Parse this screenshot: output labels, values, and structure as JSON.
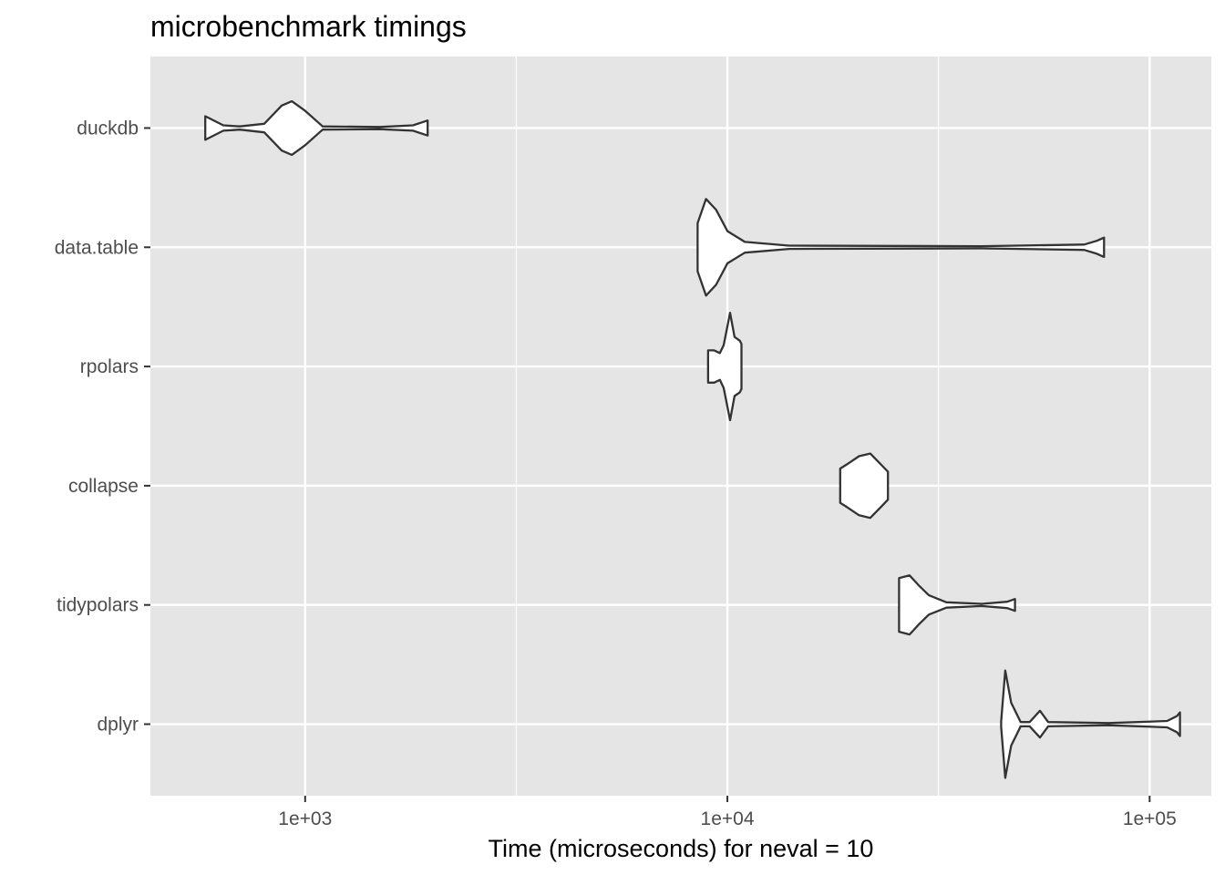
{
  "chart_data": {
    "type": "violin",
    "title": "microbenchmark timings",
    "xlabel": "Time (microseconds) for neval = 10",
    "ylabel": "",
    "x_scale": "log10",
    "xlim": [
      430,
      140000
    ],
    "x_ticks": [
      {
        "value": 1000,
        "label": "1e+03"
      },
      {
        "value": 10000,
        "label": "1e+04"
      },
      {
        "value": 100000,
        "label": "1e+05"
      }
    ],
    "x_minor_gridlines": [
      3162,
      31623
    ],
    "grid": true,
    "legend": "none",
    "colors": {
      "panel_background": "#e5e5e5",
      "gridline": "#ffffff",
      "violin_fill": "#ffffff",
      "violin_outline": "#333333",
      "tick_label": "#4d4d4d"
    },
    "categories": [
      "duckdb",
      "data.table",
      "rpolars",
      "collapse",
      "tidypolars",
      "dplyr"
    ],
    "series": [
      {
        "name": "duckdb",
        "min": 580,
        "max": 1950,
        "profile": [
          [
            580,
            0.22
          ],
          [
            640,
            0.05
          ],
          [
            700,
            0.03
          ],
          [
            800,
            0.08
          ],
          [
            880,
            0.42
          ],
          [
            930,
            0.5
          ],
          [
            1000,
            0.32
          ],
          [
            1100,
            0.03
          ],
          [
            1500,
            0.02
          ],
          [
            1800,
            0.05
          ],
          [
            1950,
            0.14
          ]
        ]
      },
      {
        "name": "data.table",
        "min": 8500,
        "max": 78000,
        "profile": [
          [
            8500,
            0.45
          ],
          [
            8900,
            0.9
          ],
          [
            9400,
            0.7
          ],
          [
            10000,
            0.3
          ],
          [
            11000,
            0.1
          ],
          [
            14000,
            0.03
          ],
          [
            40000,
            0.02
          ],
          [
            70000,
            0.05
          ],
          [
            75000,
            0.12
          ],
          [
            78000,
            0.18
          ]
        ]
      },
      {
        "name": "rpolars",
        "min": 9000,
        "max": 10800,
        "profile": [
          [
            9000,
            0.3
          ],
          [
            9300,
            0.3
          ],
          [
            9600,
            0.25
          ],
          [
            9800,
            0.4
          ],
          [
            10150,
            1.0
          ],
          [
            10400,
            0.55
          ],
          [
            10700,
            0.48
          ],
          [
            10800,
            0.42
          ]
        ]
      },
      {
        "name": "collapse",
        "min": 18500,
        "max": 24000,
        "profile": [
          [
            18500,
            0.32
          ],
          [
            19200,
            0.4
          ],
          [
            20500,
            0.55
          ],
          [
            21800,
            0.6
          ],
          [
            23200,
            0.38
          ],
          [
            24000,
            0.26
          ]
        ]
      },
      {
        "name": "tidypolars",
        "min": 25500,
        "max": 48000,
        "profile": [
          [
            25500,
            0.5
          ],
          [
            27000,
            0.55
          ],
          [
            28500,
            0.35
          ],
          [
            30000,
            0.18
          ],
          [
            33000,
            0.05
          ],
          [
            40000,
            0.02
          ],
          [
            46000,
            0.06
          ],
          [
            48000,
            0.11
          ]
        ]
      },
      {
        "name": "dplyr",
        "min": 44500,
        "max": 118000,
        "profile": [
          [
            44500,
            0.05
          ],
          [
            45500,
            1.0
          ],
          [
            47000,
            0.4
          ],
          [
            49500,
            0.04
          ],
          [
            52000,
            0.04
          ],
          [
            55000,
            0.25
          ],
          [
            57500,
            0.04
          ],
          [
            80000,
            0.02
          ],
          [
            110000,
            0.06
          ],
          [
            116000,
            0.15
          ],
          [
            118000,
            0.22
          ]
        ]
      }
    ]
  }
}
